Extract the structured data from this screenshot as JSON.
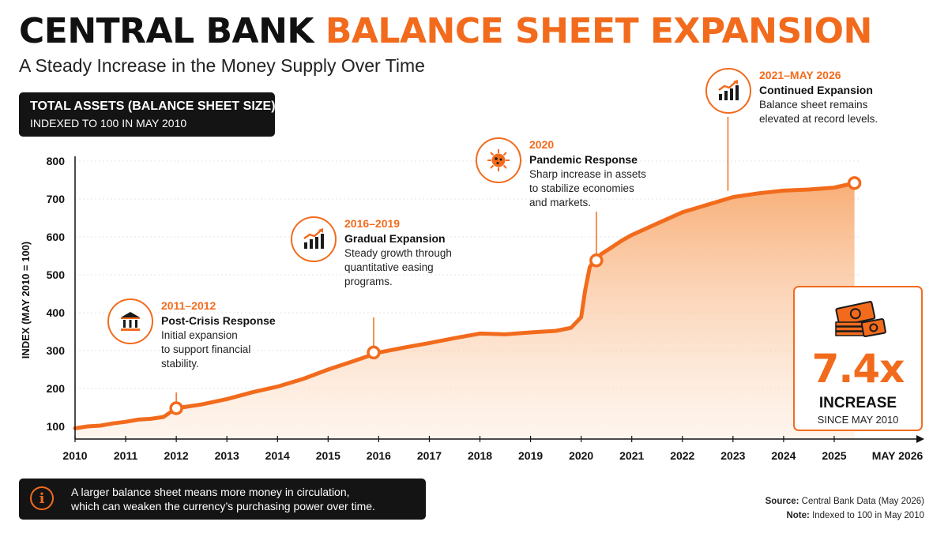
{
  "header": {
    "title_dark": "CENTRAL BANK",
    "title_accent": "BALANCE SHEET EXPANSION",
    "subtitle": "A Steady Increase in the Money Supply Over Time"
  },
  "chart_label": {
    "line1": "TOTAL ASSETS (BALANCE SHEET SIZE)",
    "line2": "INDEXED TO 100 IN MAY 2010"
  },
  "colors": {
    "accent": "#f26b1d",
    "dark": "#141414"
  },
  "chart_data": {
    "type": "area",
    "title": "TOTAL ASSETS (BALANCE SHEET SIZE)",
    "subtitle": "INDEXED TO 100 IN MAY 2010",
    "xlabel": "",
    "ylabel": "INDEX (MAY 2010 = 100)",
    "xlim": [
      2010,
      2026.4
    ],
    "ylim": [
      100,
      800
    ],
    "y_ticks": [
      100,
      200,
      300,
      400,
      500,
      600,
      700,
      800
    ],
    "x_ticks": [
      "2010",
      "2011",
      "2012",
      "2013",
      "2014",
      "2015",
      "2016",
      "2017",
      "2018",
      "2019",
      "2020",
      "2021",
      "2022",
      "2023",
      "2024",
      "2025",
      "MAY 2026"
    ],
    "grid": true,
    "series": [
      {
        "x": [
          2010.0,
          2010.25,
          2010.5,
          2010.75,
          2011.0,
          2011.25,
          2011.5,
          2011.75,
          2012.0,
          2012.5,
          2013.0,
          2013.5,
          2014.0,
          2014.5,
          2015.0,
          2015.5,
          2016.0,
          2016.5,
          2017.0,
          2017.5,
          2018.0,
          2018.5,
          2019.0,
          2019.5,
          2019.8,
          2020.0,
          2020.08,
          2020.17,
          2020.25,
          2020.4,
          2020.6,
          2020.8,
          2021.0,
          2021.5,
          2022.0,
          2022.5,
          2023.0,
          2023.5,
          2024.0,
          2024.5,
          2025.0,
          2025.4
        ],
        "values": [
          95,
          100,
          102,
          108,
          112,
          118,
          120,
          125,
          148,
          158,
          172,
          190,
          205,
          225,
          250,
          272,
          295,
          308,
          320,
          333,
          345,
          343,
          348,
          352,
          360,
          388,
          460,
          520,
          538,
          555,
          572,
          590,
          605,
          635,
          665,
          685,
          705,
          715,
          722,
          725,
          730,
          742
        ]
      }
    ],
    "highlighted_points": [
      {
        "x": 2012.0,
        "y": 148
      },
      {
        "x": 2015.9,
        "y": 295
      },
      {
        "x": 2020.3,
        "y": 538
      },
      {
        "x": 2025.4,
        "y": 742
      }
    ]
  },
  "annotations": [
    {
      "icon": "bank-building-icon",
      "period": "2011–2012",
      "heading": "Post-Crisis Response",
      "desc": [
        "Initial expansion",
        "to support financial",
        "stability."
      ],
      "anchor_x": 2012.0,
      "anchor_y": 148
    },
    {
      "icon": "growth-chart-icon",
      "period": "2016–2019",
      "heading": "Gradual Expansion",
      "desc": [
        "Steady growth through",
        "quantitative easing",
        "programs."
      ],
      "anchor_x": 2015.9,
      "anchor_y": 295
    },
    {
      "icon": "virus-icon",
      "period": "2020",
      "heading": "Pandemic Response",
      "desc": [
        "Sharp increase in assets",
        "to stabilize economies",
        "and markets."
      ],
      "anchor_x": 2020.3,
      "anchor_y": 538
    },
    {
      "icon": "growth-chart-icon",
      "period": "2021–MAY 2026",
      "heading": "Continued Expansion",
      "desc": [
        "Balance sheet remains",
        "elevated at record levels."
      ],
      "anchor_x": 2022.9,
      "anchor_y": 705
    }
  ],
  "callout": {
    "icon": "money-stack-icon",
    "value": "7.4x",
    "label": "INCREASE",
    "sublabel": "SINCE MAY 2010"
  },
  "note": {
    "icon": "info-icon",
    "line1": "A larger balance sheet means more money in circulation,",
    "line2": "which can weaken the currency’s purchasing power over time."
  },
  "source": {
    "source_label": "Source:",
    "source_text": "Central Bank Data (May 2026)",
    "note_label": "Note:",
    "note_text": "Indexed to 100 in May 2010"
  }
}
